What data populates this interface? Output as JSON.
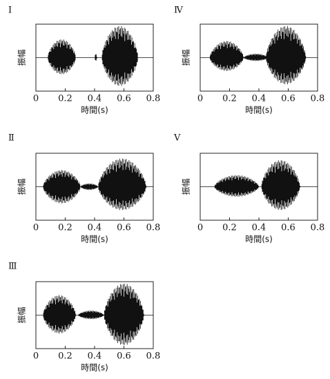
{
  "panels": [
    {
      "label": "Ⅰ",
      "ylabel": "振幅",
      "xlabel": "時間(s)",
      "xlim": [
        0,
        0.8
      ],
      "xticks": [
        0,
        0.2,
        0.4,
        0.6,
        0.8
      ]
    },
    {
      "label": "Ⅳ",
      "ylabel": "振幅",
      "xlabel": "時間(s)",
      "xlim": [
        0,
        0.8
      ],
      "xticks": [
        0,
        0.2,
        0.4,
        0.6,
        0.8
      ]
    },
    {
      "label": "Ⅱ",
      "ylabel": "振幅",
      "xlabel": "時間(s)",
      "xlim": [
        0,
        0.8
      ],
      "xticks": [
        0,
        0.2,
        0.4,
        0.6,
        0.8
      ]
    },
    {
      "label": "Ⅴ",
      "ylabel": "振幅",
      "xlabel": "時間(s)",
      "xlim": [
        0,
        0.8
      ],
      "xticks": [
        0,
        0.2,
        0.4,
        0.6,
        0.8
      ]
    },
    {
      "label": "Ⅲ",
      "ylabel": "振幅",
      "xlabel": "時間(s)",
      "xlim": [
        0,
        0.8
      ],
      "xticks": [
        0,
        0.2,
        0.4,
        0.6,
        0.8
      ]
    }
  ]
}
